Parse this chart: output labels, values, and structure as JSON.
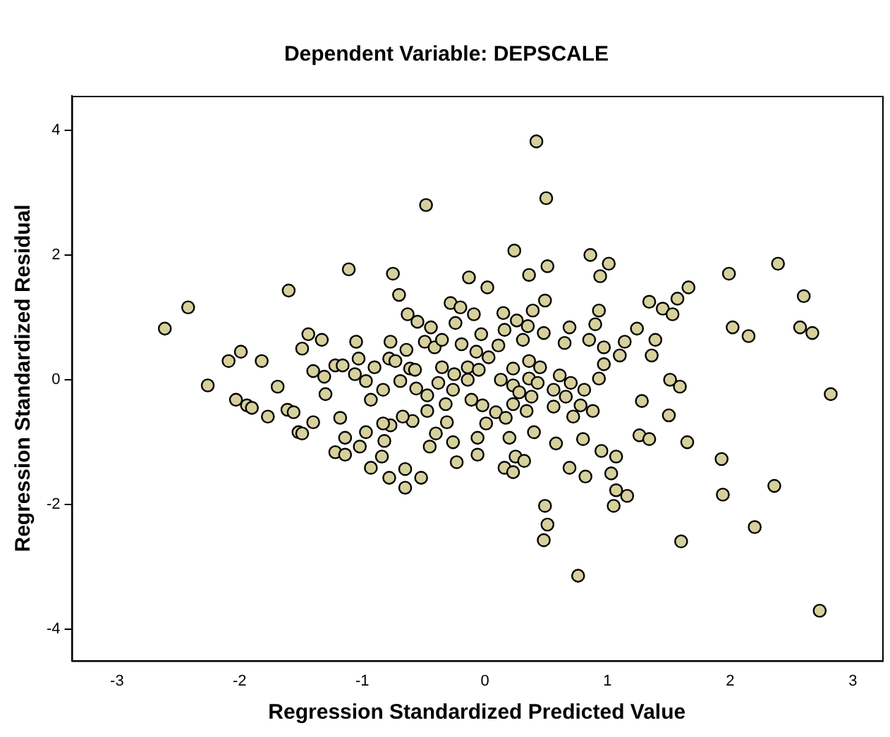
{
  "chart_data": {
    "type": "scatter",
    "title": "Dependent Variable: DEPSCALE",
    "xlabel": "Regression Standardized Predicted Value",
    "ylabel": "Regression Standardized Residual",
    "xlim": [
      -3.37,
      3.24
    ],
    "ylim": [
      -4.5,
      4.55
    ],
    "xticks": [
      -3,
      -2,
      -1,
      0,
      1,
      2,
      3
    ],
    "yticks": [
      -4,
      -2,
      0,
      2,
      4
    ],
    "grid": false,
    "legend": false,
    "marker": "circle",
    "series": [
      {
        "color": "#d6d09c",
        "x": [
          -2.61,
          -2.42,
          -1.6,
          -1.99,
          -2.09,
          -1.82,
          -2.26,
          -2.03,
          -1.94,
          -1.9,
          -1.77,
          -1.69,
          -1.61,
          -1.56,
          -1.52,
          -1.49,
          -1.4,
          -1.44,
          -1.49,
          -1.33,
          -1.4,
          -1.31,
          -1.3,
          -1.22,
          -1.18,
          -1.14,
          -1.22,
          -1.11,
          -0.75,
          -0.7,
          -0.48,
          -0.13,
          0.02,
          -0.28,
          -0.2,
          -0.09,
          -0.24,
          -0.63,
          -0.55,
          -0.44,
          -1.05,
          -0.77,
          -0.49,
          -0.64,
          -0.41,
          -0.19,
          -0.07,
          0.03,
          0.15,
          0.26,
          0.35,
          0.39,
          0.49,
          0.48,
          0.31,
          0.16,
          0.11,
          0.65,
          0.69,
          0.85,
          0.93,
          0.9,
          0.97,
          0.97,
          0.93,
          -1.03,
          -0.9,
          -0.78,
          -0.73,
          -0.61,
          -0.57,
          -0.35,
          -0.25,
          -0.14,
          -0.05,
          -1.16,
          -1.06,
          -0.97,
          -0.83,
          -0.69,
          -0.56,
          -0.47,
          -0.38,
          -0.26,
          -0.14,
          0.13,
          0.23,
          0.36,
          0.45,
          0.36,
          0.43,
          0.23,
          0.28,
          0.38,
          0.56,
          0.61,
          0.7,
          0.81,
          0.66,
          0.78,
          0.88,
          0.72,
          0.56,
          0.34,
          0.23,
          0.09,
          -0.11,
          -0.02,
          -0.32,
          -0.47,
          -0.59,
          -0.67,
          -0.77,
          -0.93,
          -0.83,
          -0.97,
          -0.82,
          -1.02,
          -1.14,
          -0.84,
          -0.93,
          -0.78,
          -0.65,
          -0.65,
          -0.52,
          -0.45,
          -0.4,
          -0.31,
          -0.26,
          -0.23,
          -0.06,
          -0.06,
          0.01,
          0.17,
          0.2,
          0.25,
          0.32,
          0.16,
          0.23,
          0.4,
          0.58,
          0.8,
          0.69,
          0.82,
          0.95,
          1.03,
          1.05,
          0.49,
          0.51,
          0.48,
          0.76,
          0.42,
          0.5,
          0.24,
          0.51,
          0.36,
          0.86,
          1.01,
          0.94,
          -0.03,
          -0.35,
          1.34,
          1.45,
          1.53,
          1.57,
          1.66,
          1.24,
          1.14,
          1.39,
          1.36,
          1.1,
          1.51,
          1.59,
          1.28,
          1.5,
          1.26,
          1.34,
          1.65,
          1.93,
          1.07,
          1.07,
          1.16,
          1.94,
          1.6,
          2.2,
          2.36,
          2.73,
          1.99,
          2.39,
          2.6,
          2.02,
          2.15,
          2.57,
          2.67,
          2.82
        ],
        "values": [
          0.82,
          1.16,
          1.43,
          0.45,
          0.3,
          0.3,
          -0.09,
          -0.32,
          -0.41,
          -0.45,
          -0.59,
          -0.11,
          -0.48,
          -0.52,
          -0.84,
          -0.86,
          -0.68,
          0.73,
          0.5,
          0.64,
          0.14,
          0.05,
          -0.23,
          0.23,
          -0.61,
          -0.93,
          -1.16,
          1.77,
          1.7,
          1.36,
          2.8,
          1.64,
          1.48,
          1.23,
          1.16,
          1.05,
          0.91,
          1.05,
          0.93,
          0.84,
          0.61,
          0.61,
          0.61,
          0.48,
          0.52,
          0.57,
          0.45,
          0.36,
          1.07,
          0.95,
          0.86,
          1.11,
          1.27,
          0.75,
          0.64,
          0.8,
          0.55,
          0.59,
          0.84,
          0.64,
          1.11,
          0.89,
          0.52,
          0.25,
          0.02,
          0.34,
          0.2,
          0.34,
          0.3,
          0.18,
          0.16,
          0.2,
          0.09,
          0.2,
          0.16,
          0.23,
          0.09,
          -0.02,
          -0.16,
          -0.02,
          -0.14,
          -0.25,
          -0.05,
          -0.16,
          0,
          0,
          0.18,
          0.3,
          0.2,
          0.02,
          -0.05,
          -0.09,
          -0.2,
          -0.27,
          -0.16,
          0.07,
          -0.05,
          -0.16,
          -0.27,
          -0.41,
          -0.5,
          -0.59,
          -0.43,
          -0.5,
          -0.39,
          -0.52,
          -0.32,
          -0.41,
          -0.39,
          -0.5,
          -0.66,
          -0.59,
          -0.73,
          -0.32,
          -0.7,
          -0.84,
          -0.98,
          -1.07,
          -1.2,
          -1.23,
          -1.41,
          -1.57,
          -1.73,
          -1.43,
          -1.57,
          -1.07,
          -0.86,
          -0.68,
          -1,
          -1.32,
          -1.2,
          -0.93,
          -0.7,
          -0.61,
          -0.93,
          -1.23,
          -1.3,
          -1.41,
          -1.48,
          -0.84,
          -1.02,
          -0.95,
          -1.41,
          -1.55,
          -1.14,
          -1.5,
          -2.02,
          -2.02,
          -2.32,
          -2.57,
          -3.14,
          3.82,
          2.91,
          2.07,
          1.82,
          1.68,
          2,
          1.86,
          1.66,
          0.73,
          0.64,
          1.25,
          1.14,
          1.05,
          1.3,
          1.48,
          0.82,
          0.61,
          0.64,
          0.39,
          0.39,
          0,
          -0.11,
          -0.34,
          -0.57,
          -0.89,
          -0.95,
          -1,
          -1.27,
          -1.23,
          -1.77,
          -1.86,
          -1.84,
          -2.59,
          -2.36,
          -1.7,
          -3.7,
          1.7,
          1.86,
          1.34,
          0.84,
          0.7,
          0.84,
          0.75,
          -0.23
        ]
      }
    ]
  }
}
